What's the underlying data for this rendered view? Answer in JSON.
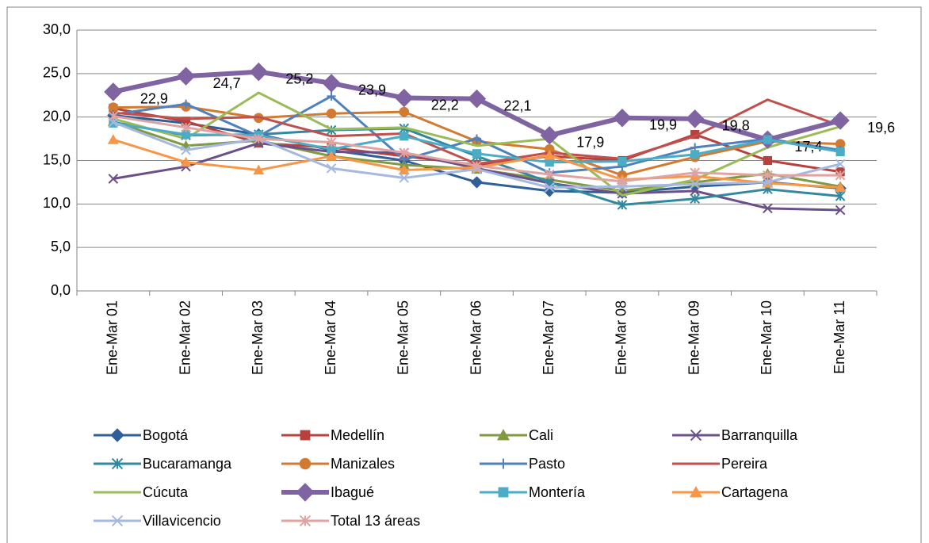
{
  "chart_data": {
    "type": "line",
    "categories": [
      "Ene-Mar 01",
      "Ene-Mar 02",
      "Ene-Mar 03",
      "Ene-Mar 04",
      "Ene-Mar 05",
      "Ene-Mar 06",
      "Ene-Mar 07",
      "Ene-Mar 08",
      "Ene-Mar 09",
      "Ene-Mar 10",
      "Ene-Mar 11"
    ],
    "ylim": [
      0,
      30
    ],
    "yticks": [
      {
        "value": 0,
        "label": "0,0"
      },
      {
        "value": 5,
        "label": "5,0"
      },
      {
        "value": 10,
        "label": "10,0"
      },
      {
        "value": 15,
        "label": "15,0"
      },
      {
        "value": 20,
        "label": "20,0"
      },
      {
        "value": 25,
        "label": "25,0"
      },
      {
        "value": 30,
        "label": "30,0"
      }
    ],
    "grid": true,
    "legend": "bottom",
    "series": [
      {
        "name": "Bogotá",
        "color": "#2f5f98",
        "marker": "diamond",
        "values": [
          20.2,
          19.3,
          18.0,
          16.2,
          15.0,
          12.5,
          11.5,
          11.3,
          12.0,
          12.5,
          11.8
        ]
      },
      {
        "name": "Medellín",
        "color": "#b8403d",
        "marker": "square",
        "values": [
          21.0,
          19.5,
          17.0,
          16.5,
          15.5,
          14.5,
          15.5,
          15.0,
          18.0,
          15.0,
          13.7
        ]
      },
      {
        "name": "Cali",
        "color": "#7f9a40",
        "marker": "triangle",
        "values": [
          19.5,
          16.7,
          17.3,
          15.5,
          14.5,
          14.0,
          12.8,
          11.5,
          12.5,
          13.5,
          12.0
        ]
      },
      {
        "name": "Barranquilla",
        "color": "#6a5088",
        "marker": "x",
        "values": [
          12.9,
          14.3,
          17.0,
          16.0,
          15.9,
          14.1,
          12.4,
          11.2,
          11.5,
          9.5,
          9.3
        ]
      },
      {
        "name": "Bucaramanga",
        "color": "#31899f",
        "marker": "asterisk",
        "values": [
          19.4,
          17.9,
          18.0,
          18.5,
          18.7,
          15.5,
          12.5,
          9.9,
          10.6,
          11.7,
          10.9
        ]
      },
      {
        "name": "Manizales",
        "color": "#d27a31",
        "marker": "circle",
        "values": [
          21.1,
          21.2,
          19.9,
          20.4,
          20.6,
          17.2,
          16.3,
          13.3,
          15.4,
          17.2,
          16.9
        ]
      },
      {
        "name": "Pasto",
        "color": "#4f81bd",
        "marker": "plus",
        "values": [
          20.3,
          21.5,
          17.8,
          22.4,
          15.1,
          17.5,
          13.6,
          14.3,
          16.5,
          17.5,
          16.2
        ]
      },
      {
        "name": "Pereira",
        "color": "#c0504d",
        "marker": "none",
        "values": [
          20.5,
          19.8,
          20.0,
          17.8,
          18.1,
          14.6,
          15.9,
          15.2,
          17.8,
          22.0,
          19.0
        ]
      },
      {
        "name": "Cúcuta",
        "color": "#9bbb59",
        "marker": "none",
        "values": [
          19.8,
          17.5,
          22.8,
          18.6,
          18.8,
          16.7,
          17.5,
          11.0,
          12.8,
          16.5,
          18.9
        ]
      },
      {
        "name": "Ibagué",
        "color": "#8064a2",
        "marker": "diamond",
        "line_width": 6,
        "values": [
          22.9,
          24.7,
          25.2,
          23.9,
          22.2,
          22.1,
          17.9,
          19.9,
          19.8,
          17.4,
          19.6
        ],
        "value_labels": [
          "22,9",
          "24,7",
          "25,2",
          "23,9",
          "22,2",
          "22,1",
          "17,9",
          "19,9",
          "19,8",
          "17,4",
          "19,6"
        ]
      },
      {
        "name": "Montería",
        "color": "#4bacc6",
        "marker": "square",
        "values": [
          19.3,
          18.0,
          17.9,
          16.3,
          17.8,
          15.8,
          14.8,
          14.9,
          15.7,
          17.4,
          16.0
        ]
      },
      {
        "name": "Cartagena",
        "color": "#f79646",
        "marker": "triangle",
        "values": [
          17.4,
          14.8,
          13.9,
          15.5,
          13.9,
          14.2,
          15.6,
          12.8,
          13.2,
          12.4,
          11.9
        ]
      },
      {
        "name": "Villavicencio",
        "color": "#a5b8e0",
        "marker": "x",
        "values": [
          19.4,
          16.2,
          17.5,
          14.1,
          13.0,
          14.0,
          11.9,
          12.0,
          12.3,
          12.5,
          14.6
        ]
      },
      {
        "name": "Total 13 áreas",
        "color": "#e0a3a2",
        "marker": "asterisk",
        "values": [
          20.1,
          18.8,
          17.5,
          17.1,
          15.9,
          14.4,
          13.4,
          12.6,
          13.6,
          13.3,
          13.3
        ]
      }
    ]
  }
}
